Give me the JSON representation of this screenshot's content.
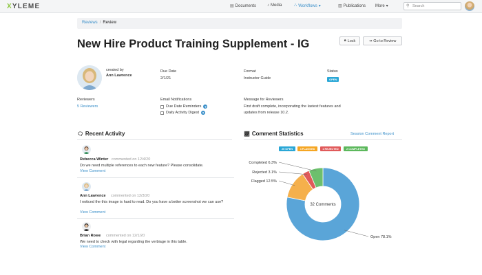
{
  "app": {
    "logo_letter": "X",
    "logo_rest": "YLEME"
  },
  "nav": [
    {
      "label": "Documents",
      "icon": "document-icon"
    },
    {
      "label": "Media",
      "icon": "music-note-icon"
    },
    {
      "label": "Workflows",
      "icon": "workflow-icon"
    },
    {
      "label": "Publications",
      "icon": "book-icon"
    },
    {
      "label": "More",
      "icon": ""
    }
  ],
  "search": {
    "placeholder": "Search"
  },
  "breadcrumb": {
    "parent": "Reviews",
    "current": "Review"
  },
  "page": {
    "title": "New Hire Product Training Supplement - IG"
  },
  "buttons": {
    "lock": "Lock",
    "go_to_review": "Go to Review"
  },
  "details": {
    "created_by_label": "created by",
    "creator": "Ann Lawrence",
    "due_date_label": "Due Date",
    "due_date": "2/1/21",
    "format_label": "Format",
    "format": "Instructor Guide",
    "status_label": "Status",
    "status": "OPEN",
    "reviewers_label": "Reviewers",
    "reviewers": "5 Reviewers",
    "email_label": "Email Notifications",
    "email_options": [
      "Due Date Reminders",
      "Daily Activity Digest"
    ],
    "message_label": "Message for Reviewers",
    "message_line1": "First draft complete, incorporating the lastest features and",
    "message_line2": "updates from release 10.2."
  },
  "activity": {
    "title": "Recent Activity",
    "items": [
      {
        "name": "Rebecca Winter",
        "meta": "commented on 12/4/20",
        "text": "Do we need multiple references to each new feature? Please consolidate.",
        "link": "View Comment"
      },
      {
        "name": "Ann Lawrence",
        "meta": "commented on 12/3/20",
        "text": "I noticed the this image is hard to read. Do you have a better screenshot we can use?",
        "link": "View Comment"
      },
      {
        "name": "Brian Rowe",
        "meta": "commented on 12/1/20",
        "text": "We need to check with legal regarding the verbiage in this table.",
        "link": "View Comment"
      }
    ]
  },
  "stats": {
    "title": "Comment Statistics",
    "report_link": "Session Comment Report",
    "pills": [
      {
        "label": "25 OPEN",
        "color": "#2aa7d6"
      },
      {
        "label": "4 FLAGGED",
        "color": "#f5a623"
      },
      {
        "label": "1 REJECTED",
        "color": "#e05a5a"
      },
      {
        "label": "2 COMPLETED",
        "color": "#5cb85c"
      }
    ],
    "center_label": "32 Comments"
  },
  "colors": {
    "accent": "#3a8fc9",
    "open": "#5aa5d8",
    "flagged": "#f5b04c",
    "rejected": "#e05a5a",
    "completed": "#6dbf6d"
  },
  "chart_data": {
    "type": "pie",
    "variant": "donut",
    "center_text": "32 Comments",
    "slices": [
      {
        "label": "Open",
        "value": 78.1,
        "display": "Open 78.1%",
        "color": "#5aa5d8"
      },
      {
        "label": "Flagged",
        "value": 12.5,
        "display": "Flagged 12.5%",
        "color": "#f5b04c"
      },
      {
        "label": "Rejected",
        "value": 3.1,
        "display": "Rejected 3.1%",
        "color": "#e05a5a"
      },
      {
        "label": "Completed",
        "value": 6.3,
        "display": "Completed 6.3%",
        "color": "#6dbf6d"
      }
    ]
  }
}
